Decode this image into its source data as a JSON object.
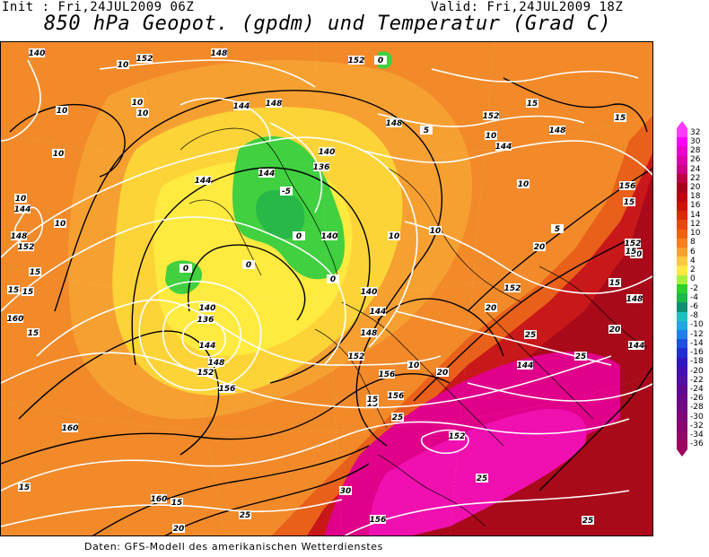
{
  "header": {
    "init": "Init : Fri,24JUL2009 06Z",
    "valid": "Valid: Fri,24JUL2009 18Z",
    "title": "850 hPa Geopot. (gpdm) und Temperatur (Grad C)"
  },
  "footer": "Daten: GFS-Modell des amerikanischen Wetterdienstes",
  "legend": {
    "values": [
      "32",
      "30",
      "28",
      "26",
      "24",
      "22",
      "20",
      "18",
      "16",
      "14",
      "12",
      "10",
      "8",
      "6",
      "4",
      "2",
      "0",
      "-2",
      "-4",
      "-6",
      "-8",
      "-10",
      "-12",
      "-14",
      "-16",
      "-18",
      "-20",
      "-22",
      "-24",
      "-26",
      "-28",
      "-30",
      "-32",
      "-34",
      "-36"
    ],
    "colors": [
      "#ff3cff",
      "#ff00ff",
      "#ee00cc",
      "#dd00aa",
      "#cc0088",
      "#bb0044",
      "#a80018",
      "#c00010",
      "#d01008",
      "#e02808",
      "#e84810",
      "#f06010",
      "#f58020",
      "#f8a030",
      "#fcc840",
      "#ffe840",
      "#a8f040",
      "#30d030",
      "#20b848",
      "#109070",
      "#20c0c0",
      "#20a8e0",
      "#2080e8",
      "#2050e0",
      "#2030d0",
      "#3018c0",
      "#4010b0",
      "#5010a0",
      "#600890",
      "#6a0888",
      "#740880",
      "#7e0878",
      "#880870",
      "#920868",
      "#9c0860"
    ]
  },
  "geopotential_labels": [
    "140",
    "152",
    "148",
    "152",
    "144",
    "148",
    "144",
    "148",
    "144",
    "136",
    "140",
    "140",
    "144",
    "144",
    "140",
    "136",
    "148",
    "144",
    "152",
    "148",
    "140",
    "148",
    "152",
    "156",
    "156",
    "156",
    "152",
    "160",
    "160",
    "160",
    "152",
    "152",
    "144",
    "148",
    "156",
    "148",
    "144",
    "152",
    "144",
    "152",
    "156"
  ],
  "temperature_labels": [
    "10",
    "10",
    "10",
    "10",
    "10",
    "10",
    "10",
    "15",
    "15",
    "15",
    "15",
    "15",
    "15",
    "15",
    "5",
    "0",
    "-5",
    "0",
    "0",
    "0",
    "0",
    "5",
    "10",
    "10",
    "10",
    "10",
    "10",
    "15",
    "15",
    "15",
    "15",
    "20",
    "20",
    "20",
    "20",
    "20",
    "25",
    "25",
    "25",
    "25",
    "25",
    "30",
    "25",
    "20",
    "15",
    "15"
  ]
}
